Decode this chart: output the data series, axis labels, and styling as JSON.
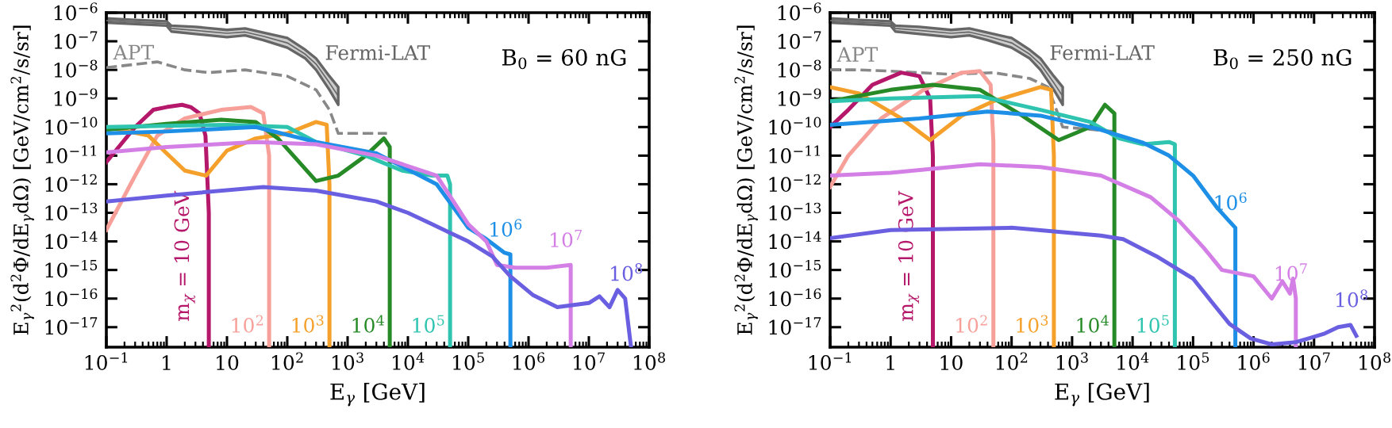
{
  "chart_data": [
    {
      "type": "line",
      "xlabel": "E$_{γ}$ [GeV]",
      "ylabel": "E$_{γ}$$^{2}$(d$^{2}$Φ/dE$_{γ}$dΩ) [GeV/cm$^{2}$/s/sr]",
      "log": "xy",
      "xlim": [
        0.1,
        100000000
      ],
      "ylim": [
        2e-18,
        1e-06
      ],
      "xticks": [
        {
          "value": 0.1,
          "label": "10$^{−1}$"
        },
        1,
        10,
        {
          "value": 100,
          "label": "10$^{2}$"
        },
        {
          "value": 1000,
          "label": "10$^{3}$"
        },
        {
          "value": 10000,
          "label": "10$^{4}$"
        },
        {
          "value": 100000,
          "label": "10$^{5}$"
        },
        {
          "value": 1000000,
          "label": "10$^{6}$"
        },
        {
          "value": 10000000,
          "label": "10$^{7}$"
        },
        {
          "value": 100000000,
          "label": "10$^{8}$"
        }
      ],
      "yticks": [
        {
          "value": 1e-06,
          "label": "10$^{−6}$"
        },
        {
          "value": 1e-07,
          "label": "10$^{−7}$"
        },
        {
          "value": 1e-08,
          "label": "10$^{−8}$"
        },
        {
          "value": 1e-09,
          "label": "10$^{−9}$"
        },
        {
          "value": 1e-10,
          "label": "10$^{−10}$"
        },
        {
          "value": 1e-11,
          "label": "10$^{−11}$"
        },
        {
          "value": 1e-12,
          "label": "10$^{−12}$"
        },
        {
          "value": 1e-13,
          "label": "10$^{−13}$"
        },
        {
          "value": 1e-14,
          "label": "10$^{−14}$"
        },
        {
          "value": 1e-15,
          "label": "10$^{−15}$"
        },
        {
          "value": 1e-16,
          "label": "10$^{−16}$"
        },
        {
          "value": 1e-17,
          "label": "10$^{−17}$"
        }
      ],
      "annotations": [
        "B$_{0}$ = 60 nG"
      ],
      "series": [
        {
          "name": "Fermi-LAT",
          "color": "#666666",
          "x": [
            0.1,
            0.3,
            1,
            1.2,
            3,
            10,
            20,
            40,
            100,
            200,
            300,
            500,
            700
          ],
          "values": [
            5.3e-07,
            4.7e-07,
            4.2e-07,
            2.8e-07,
            2.4e-07,
            1.9e-07,
            2.1e-07,
            1.5e-07,
            8.8e-08,
            3.5e-08,
            1.6e-08,
            3.5e-09,
            1.2e-09
          ],
          "lower": [
            4.5e-07,
            4e-07,
            3.5e-07,
            2.2e-07,
            1.8e-07,
            1.4e-07,
            1.6e-07,
            1.1e-07,
            6e-08,
            2.5e-08,
            1e-08,
            2e-09,
            6e-10
          ],
          "upper": [
            6.3e-07,
            5.6e-07,
            5e-07,
            3.5e-07,
            3.2e-07,
            2.5e-07,
            2.8e-07,
            2e-07,
            1.3e-07,
            5e-08,
            2.5e-08,
            6e-09,
            2.5e-09
          ]
        },
        {
          "name": "APT",
          "color": "#888888",
          "line_style": "dashed",
          "x": [
            0.1,
            0.7,
            2,
            5,
            20,
            100,
            300,
            500,
            700,
            4500
          ],
          "values": [
            1.2e-08,
            1.9e-08,
            1e-08,
            8e-09,
            1e-08,
            6e-09,
            2e-09,
            4e-10,
            6e-11,
            6e-11
          ]
        },
        {
          "name": "m$_{χ}$ = 10 GeV",
          "color": "#b5176a",
          "x": [
            0.1,
            0.3,
            0.6,
            1,
            1.8,
            2.5,
            3.5,
            4.4,
            5,
            5
          ],
          "values": [
            6e-12,
            1e-10,
            4e-10,
            5e-10,
            6e-10,
            5e-10,
            3e-10,
            5e-11,
            1e-13,
            2e-18
          ]
        },
        {
          "name": "10$^{2}$",
          "color": "#f7a09a",
          "x": [
            0.1,
            0.3,
            0.7,
            2,
            8,
            25,
            40,
            50,
            50
          ],
          "values": [
            2.5e-14,
            2e-12,
            5e-11,
            2e-10,
            4e-10,
            5e-10,
            3e-10,
            1e-11,
            2e-18
          ]
        },
        {
          "name": "10$^{3}$",
          "color": "#f5a02a",
          "x": [
            0.1,
            0.5,
            1,
            2,
            4.5,
            10,
            30,
            100,
            300,
            450,
            500,
            500
          ],
          "values": [
            1e-10,
            5e-11,
            1.2e-11,
            3e-12,
            2e-12,
            1.5e-11,
            4e-11,
            6e-11,
            1.5e-10,
            1.2e-10,
            1e-12,
            2e-18
          ]
        },
        {
          "name": "10$^{4}$",
          "color": "#268a26",
          "x": [
            0.1,
            1,
            8,
            30,
            70,
            300,
            700,
            2000,
            4000,
            5000,
            5000
          ],
          "values": [
            8e-11,
            1.3e-10,
            1.8e-10,
            1.5e-10,
            4e-11,
            1.3e-12,
            2e-12,
            1e-11,
            4e-11,
            2e-11,
            2e-18
          ]
        },
        {
          "name": "10$^{5}$",
          "color": "#2ec4b0",
          "x": [
            0.1,
            1,
            10,
            100,
            300,
            2000,
            8000,
            25000,
            45000,
            50000,
            50000
          ],
          "values": [
            1e-10,
            1.1e-10,
            1.2e-10,
            1e-10,
            3e-11,
            1e-11,
            3e-12,
            2e-12,
            2e-12,
            1e-12,
            2e-18
          ]
        },
        {
          "name": "10$^{6}$",
          "color": "#1e8fe6",
          "x": [
            0.1,
            1,
            30,
            300,
            3000,
            30000,
            100000,
            200000,
            400000,
            500000,
            500000
          ],
          "values": [
            6e-11,
            7e-11,
            1e-10,
            3e-11,
            1.2e-11,
            1e-12,
            3e-14,
            1.2e-14,
            4e-15,
            3.5e-15,
            2e-18
          ]
        },
        {
          "name": "10$^{7}$",
          "color": "#d47fe6",
          "x": [
            0.1,
            1,
            30,
            300,
            3000,
            30000,
            100000,
            200000,
            300000,
            600000,
            2000000,
            5000000,
            5000000
          ],
          "values": [
            1.3e-11,
            2e-11,
            3e-11,
            2.5e-11,
            1e-11,
            2e-12,
            4e-14,
            1e-14,
            1.5e-15,
            1.2e-15,
            1.2e-15,
            1.5e-15,
            2e-18
          ]
        },
        {
          "name": "10$^{8}$",
          "color": "#6a5fe0",
          "x": [
            0.1,
            1,
            40,
            300,
            3000,
            10000,
            25000,
            50000,
            100000,
            250000,
            500000,
            1200000,
            3000000,
            10000000,
            15000000,
            22000000,
            30000000,
            40000000,
            50000000
          ],
          "values": [
            2.5e-13,
            4e-13,
            8e-13,
            6e-13,
            2.5e-13,
            1e-13,
            4e-14,
            2e-14,
            1e-14,
            3e-15,
            6e-16,
            1.3e-16,
            5e-17,
            7e-17,
            1.2e-16,
            5e-17,
            2e-16,
            1e-16,
            2e-18
          ]
        }
      ]
    },
    {
      "type": "line",
      "xlabel": "E$_{γ}$ [GeV]",
      "ylabel": "E$_{γ}$$^{2}$(d$^{2}$Φ/dE$_{γ}$dΩ) [GeV/cm$^{2}$/s/sr]",
      "log": "xy",
      "xlim": [
        0.1,
        100000000
      ],
      "ylim": [
        2e-18,
        1e-06
      ],
      "xticks": [
        {
          "value": 0.1,
          "label": "10$^{−1}$"
        },
        1,
        10,
        {
          "value": 100,
          "label": "10$^{2}$"
        },
        {
          "value": 1000,
          "label": "10$^{3}$"
        },
        {
          "value": 10000,
          "label": "10$^{4}$"
        },
        {
          "value": 100000,
          "label": "10$^{5}$"
        },
        {
          "value": 1000000,
          "label": "10$^{6}$"
        },
        {
          "value": 10000000,
          "label": "10$^{7}$"
        },
        {
          "value": 100000000,
          "label": "10$^{8}$"
        }
      ],
      "yticks": [
        {
          "value": 1e-06,
          "label": "10$^{−6}$"
        },
        {
          "value": 1e-07,
          "label": "10$^{−7}$"
        },
        {
          "value": 1e-08,
          "label": "10$^{−8}$"
        },
        {
          "value": 1e-09,
          "label": "10$^{−9}$"
        },
        {
          "value": 1e-10,
          "label": "10$^{−10}$"
        },
        {
          "value": 1e-11,
          "label": "10$^{−11}$"
        },
        {
          "value": 1e-12,
          "label": "10$^{−12}$"
        },
        {
          "value": 1e-13,
          "label": "10$^{−13}$"
        },
        {
          "value": 1e-14,
          "label": "10$^{−14}$"
        },
        {
          "value": 1e-15,
          "label": "10$^{−15}$"
        },
        {
          "value": 1e-16,
          "label": "10$^{−16}$"
        },
        {
          "value": 1e-17,
          "label": "10$^{−17}$"
        }
      ],
      "annotations": [
        "B$_{0}$ = 250 nG"
      ],
      "series": [
        {
          "name": "Fermi-LAT",
          "color": "#666666",
          "x": [
            0.1,
            0.3,
            1,
            1.2,
            3,
            10,
            20,
            40,
            100,
            200,
            300,
            500,
            700
          ],
          "values": [
            5.3e-07,
            4.7e-07,
            4.2e-07,
            2.8e-07,
            2.4e-07,
            1.9e-07,
            2.1e-07,
            1.5e-07,
            8.8e-08,
            3.5e-08,
            1.6e-08,
            3.5e-09,
            1.2e-09
          ],
          "lower": [
            4.5e-07,
            4e-07,
            3.5e-07,
            2.2e-07,
            1.8e-07,
            1.4e-07,
            1.6e-07,
            1.1e-07,
            6e-08,
            2.5e-08,
            1e-08,
            2e-09,
            6e-10
          ],
          "upper": [
            6.3e-07,
            5.6e-07,
            5e-07,
            3.5e-07,
            3.2e-07,
            2.5e-07,
            2.8e-07,
            2e-07,
            1.3e-07,
            5e-08,
            2.5e-08,
            6e-09,
            2.5e-09
          ]
        },
        {
          "name": "APT",
          "color": "#888888",
          "line_style": "dashed",
          "x": [
            0.1,
            0.3,
            1,
            10,
            50,
            200,
            400,
            700,
            5000
          ],
          "values": [
            1e-08,
            1e-08,
            9e-09,
            7e-09,
            8e-09,
            5e-09,
            2.5e-09,
            1e-10,
            7e-11
          ]
        },
        {
          "name": "m$_{χ}$ = 10 GeV",
          "color": "#b5176a",
          "x": [
            0.1,
            0.2,
            0.5,
            1.5,
            3,
            4.5,
            5,
            5
          ],
          "values": [
            1e-10,
            4e-10,
            3e-09,
            8e-09,
            6e-09,
            1e-09,
            1e-11,
            2e-18
          ]
        },
        {
          "name": "10$^{2}$",
          "color": "#f7a09a",
          "x": [
            0.1,
            0.2,
            0.7,
            3.5,
            15,
            30,
            45,
            50,
            50
          ],
          "values": [
            8e-13,
            1e-11,
            2e-10,
            2e-09,
            8e-09,
            9e-09,
            3e-09,
            3e-11,
            2e-18
          ]
        },
        {
          "name": "10$^{3}$",
          "color": "#f5a02a",
          "x": [
            0.1,
            0.3,
            1.5,
            4.5,
            15,
            50,
            300,
            450,
            500,
            500
          ],
          "values": [
            2.5e-09,
            1.5e-09,
            2e-10,
            3.5e-11,
            2.5e-10,
            8e-10,
            2.5e-09,
            2e-09,
            1e-11,
            2e-18
          ]
        },
        {
          "name": "10$^{4}$",
          "color": "#268a26",
          "x": [
            0.1,
            1,
            5,
            30,
            150,
            600,
            2000,
            3500,
            5000,
            5000
          ],
          "values": [
            8e-10,
            2e-09,
            3e-09,
            2e-09,
            2.5e-10,
            3.5e-11,
            1e-10,
            6e-10,
            3e-10,
            2e-18
          ]
        },
        {
          "name": "10$^{5}$",
          "color": "#2ec4b0",
          "x": [
            0.1,
            1,
            30,
            300,
            2000,
            6000,
            15000,
            40000,
            50000,
            50000
          ],
          "values": [
            8e-10,
            1e-09,
            1.2e-09,
            4e-10,
            1.5e-10,
            4e-11,
            2.5e-11,
            3e-11,
            2.5e-11,
            2e-18
          ]
        },
        {
          "name": "10$^{6}$",
          "color": "#1e8fe6",
          "x": [
            0.1,
            3,
            40,
            300,
            3000,
            15000,
            40000,
            100000,
            250000,
            400000,
            500000,
            500000
          ],
          "values": [
            1.2e-10,
            2e-10,
            3.5e-10,
            2.5e-10,
            8e-11,
            2.8e-11,
            1e-11,
            2e-12,
            1.5e-13,
            5e-14,
            3e-14,
            2e-18
          ]
        },
        {
          "name": "10$^{7}$",
          "color": "#d47fe6",
          "x": [
            0.1,
            1,
            30,
            300,
            3000,
            20000,
            60000,
            150000,
            300000,
            1000000,
            2000000,
            3000000,
            4000000,
            4500000,
            5000000,
            5000000
          ],
          "values": [
            2e-12,
            2.5e-12,
            5e-12,
            4e-12,
            2e-12,
            3.5e-13,
            5e-14,
            6e-15,
            1e-15,
            6e-16,
            1e-16,
            4e-16,
            1.5e-16,
            5e-16,
            1e-16,
            2e-18
          ]
        },
        {
          "name": "10$^{8}$",
          "color": "#6a5fe0",
          "x": [
            0.1,
            1,
            100,
            3000,
            7000,
            25000,
            100000,
            200000,
            400000,
            900000,
            2000000,
            5000000,
            8000000,
            15000000,
            25000000,
            40000000,
            50000000
          ],
          "values": [
            1.3e-14,
            2.5e-14,
            3e-14,
            1.6e-14,
            1.2e-14,
            3e-15,
            5e-16,
            8e-17,
            1.3e-17,
            4e-18,
            2.5e-18,
            3e-18,
            4e-18,
            6e-18,
            1e-17,
            1.2e-17,
            5e-18
          ]
        }
      ]
    }
  ]
}
